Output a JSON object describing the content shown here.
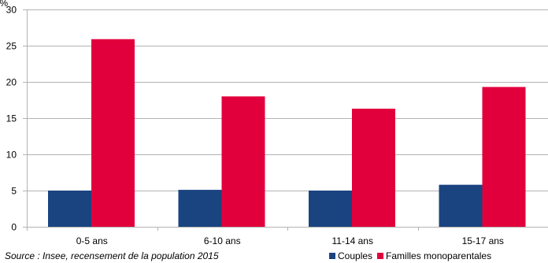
{
  "chart_data": {
    "type": "bar",
    "unit_label": "%",
    "categories": [
      "0-5 ans",
      "6-10 ans",
      "11-14 ans",
      "15-17 ans"
    ],
    "series": [
      {
        "name": "Couples",
        "values": [
          5.0,
          5.1,
          5.0,
          5.8
        ],
        "color": "#1a4480"
      },
      {
        "name": "Familles monoparentales",
        "values": [
          25.9,
          18.0,
          16.3,
          19.3
        ],
        "color": "#e2003c"
      }
    ],
    "ylim": [
      0,
      30
    ],
    "yticks": [
      0,
      5,
      10,
      15,
      20,
      25,
      30
    ],
    "grid": true,
    "legend_position": "bottom-right"
  },
  "source": "Source : Insee, recensement de la population 2015"
}
